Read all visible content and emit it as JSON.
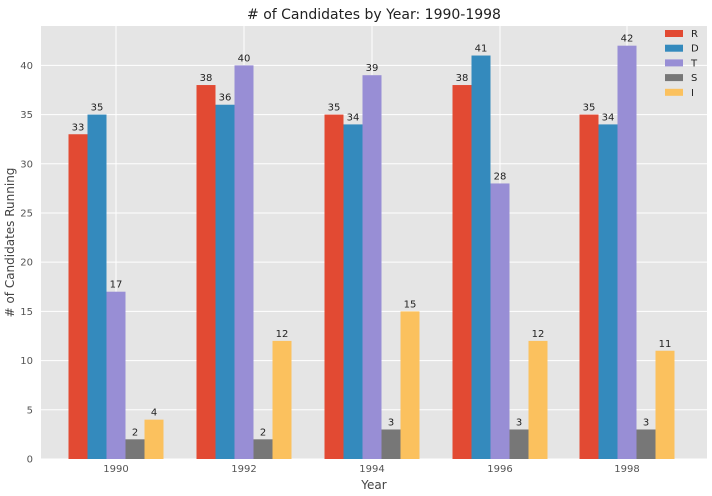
{
  "chart_data": {
    "type": "bar",
    "title": "# of Candidates by Year: 1990-1998",
    "xlabel": "Year",
    "ylabel": "# of Candidates Running",
    "categories": [
      "1990",
      "1992",
      "1994",
      "1996",
      "1998"
    ],
    "series": [
      {
        "name": "R",
        "color": "#e24a33",
        "values": [
          33,
          38,
          35,
          38,
          35
        ]
      },
      {
        "name": "D",
        "color": "#348abd",
        "values": [
          35,
          36,
          34,
          41,
          34
        ]
      },
      {
        "name": "T",
        "color": "#988ed5",
        "values": [
          17,
          40,
          39,
          28,
          42
        ]
      },
      {
        "name": "S",
        "color": "#777777",
        "values": [
          2,
          2,
          3,
          3,
          3
        ]
      },
      {
        "name": "I",
        "color": "#fbc15e",
        "values": [
          4,
          12,
          15,
          12,
          11
        ]
      }
    ],
    "ylim": [
      0,
      44
    ],
    "yticks": [
      0,
      5,
      10,
      15,
      20,
      25,
      30,
      35,
      40
    ],
    "grid": true,
    "legend_position": "top-right",
    "background": "#e5e5e5",
    "grid_color": "#ffffff"
  }
}
